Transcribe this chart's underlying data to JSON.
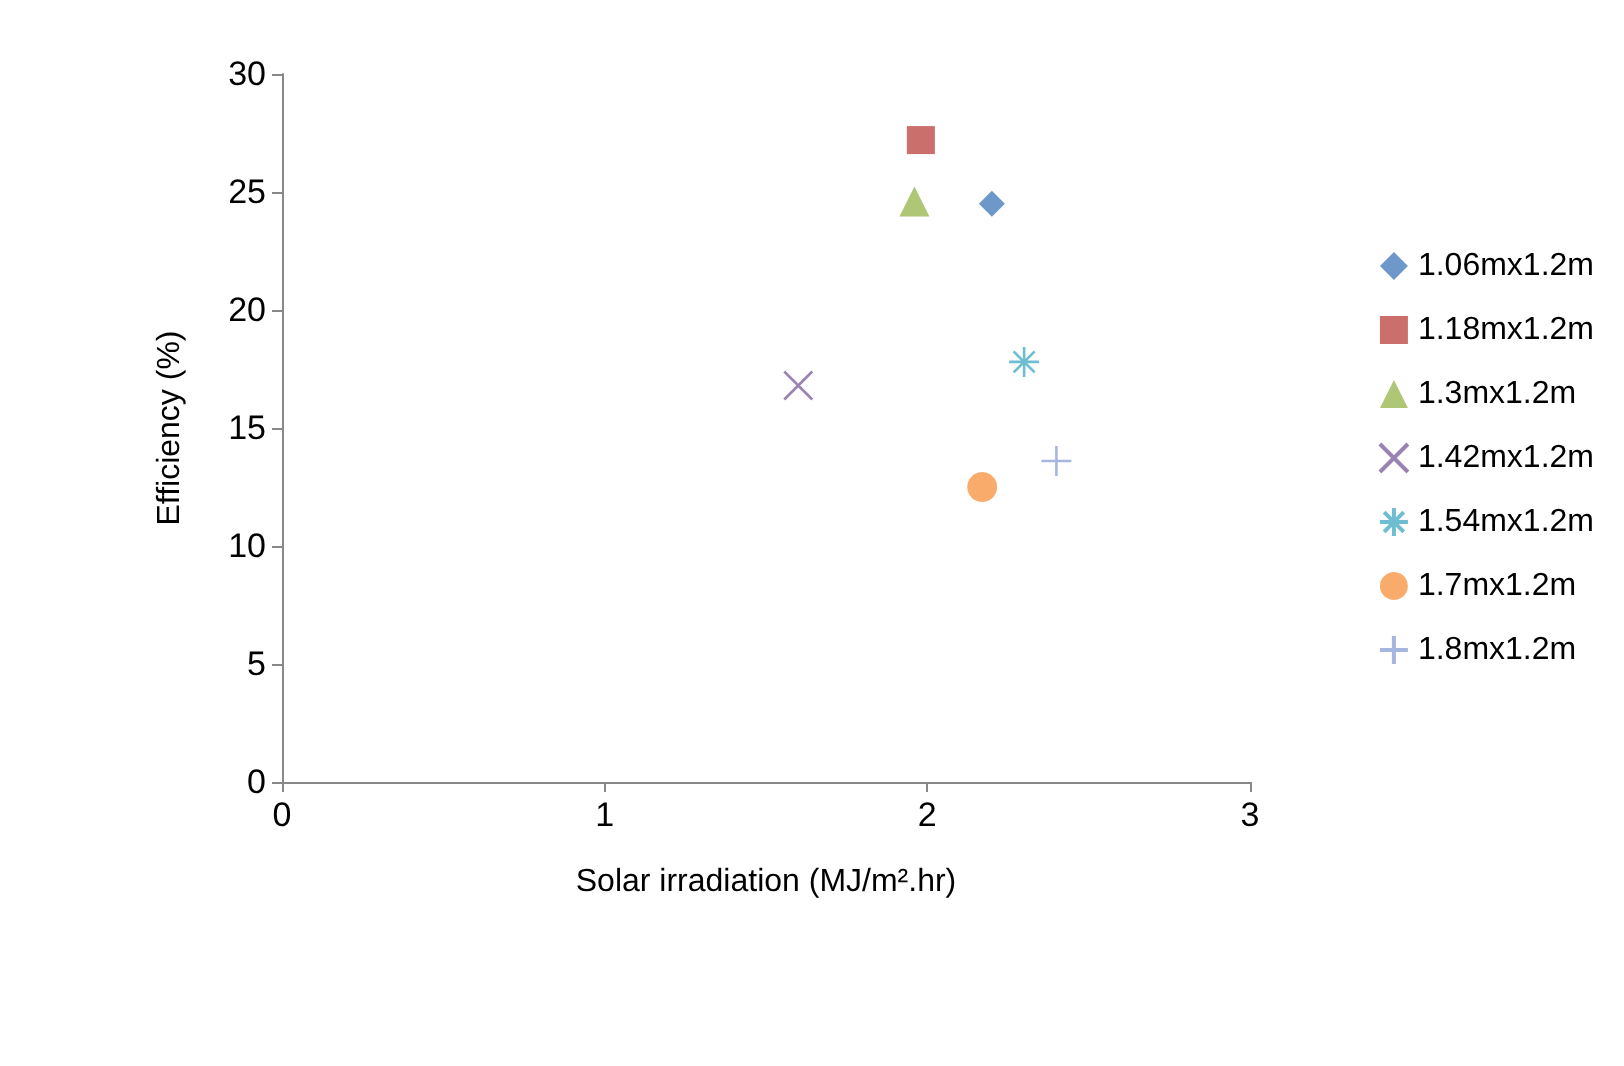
{
  "chart_data": {
    "type": "scatter",
    "xlabel": "Solar irradiation (MJ/m².hr)",
    "ylabel": "Efficiency (%)",
    "xlim": [
      0,
      3
    ],
    "xticks": [
      0,
      1,
      2,
      3
    ],
    "ylim": [
      0,
      30
    ],
    "yticks": [
      0,
      5,
      10,
      15,
      20,
      25,
      30
    ],
    "grid": false,
    "legend": "right",
    "series": [
      {
        "name": "1.06mx1.2m",
        "color": "#4a7ebb",
        "marker": "diamond",
        "x": [
          2.2
        ],
        "values": [
          24.5
        ]
      },
      {
        "name": "1.18mx1.2m",
        "color": "#be4b48",
        "marker": "square",
        "x": [
          1.98
        ],
        "values": [
          27.2
        ]
      },
      {
        "name": "1.3mx1.2m",
        "color": "#98b954",
        "marker": "triangle",
        "x": [
          1.96
        ],
        "values": [
          24.6
        ]
      },
      {
        "name": "1.42mx1.2m",
        "color": "#8064a2",
        "marker": "x",
        "x": [
          1.6
        ],
        "values": [
          16.8
        ]
      },
      {
        "name": "1.54mx1.2m",
        "color": "#4bacc6",
        "marker": "cross",
        "x": [
          2.3
        ],
        "values": [
          17.8
        ]
      },
      {
        "name": "1.7mx1.2m",
        "color": "#f79646",
        "marker": "circle",
        "x": [
          2.17
        ],
        "values": [
          12.5
        ]
      },
      {
        "name": "1.8mx1.2m",
        "color": "#8ea5d9",
        "marker": "plus",
        "x": [
          2.4
        ],
        "values": [
          13.6
        ]
      }
    ]
  }
}
